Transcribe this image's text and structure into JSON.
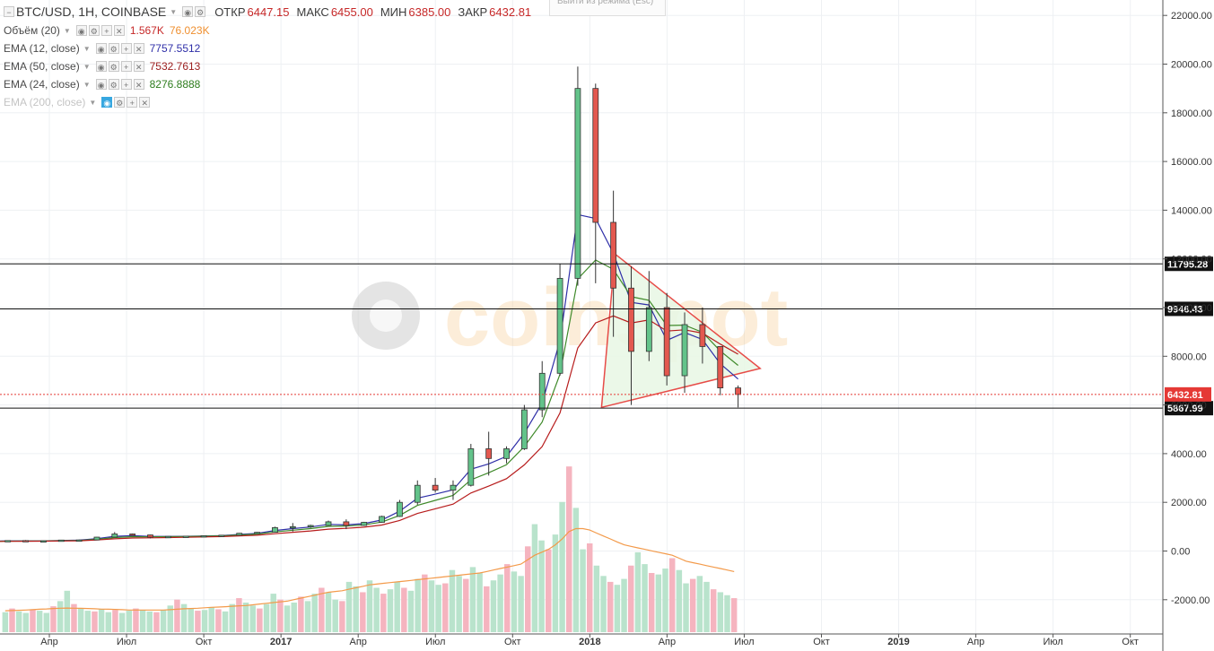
{
  "header": {
    "symbol": "BTC/USD, 1Н, COINBASE",
    "ohlc": [
      {
        "label": "ОТКР",
        "value": "6447.15"
      },
      {
        "label": "МАКС",
        "value": "6455.00"
      },
      {
        "label": "МИН",
        "value": "6385.00"
      },
      {
        "label": "ЗАКР",
        "value": "6432.81"
      }
    ]
  },
  "indicators": [
    {
      "name": "Объём (20)",
      "values": [
        "1.567K",
        "76.023K"
      ],
      "colors": [
        "#c62828",
        "#ef8f2f"
      ]
    },
    {
      "name": "EMA (12, close)",
      "values": [
        "7757.5512"
      ],
      "colors": [
        "#2f2fa8"
      ]
    },
    {
      "name": "EMA (50, close)",
      "values": [
        "7532.7613"
      ],
      "colors": [
        "#9b1c1c"
      ]
    },
    {
      "name": "EMA (24, close)",
      "values": [
        "8276.8888"
      ],
      "colors": [
        "#2e7d1e"
      ]
    },
    {
      "name": "EMA (200, close)",
      "values": [],
      "colors": []
    }
  ],
  "tooltip": {
    "text": "Выйти из режима (Esc)"
  },
  "watermark": {
    "text": "coinspot"
  },
  "colors": {
    "up": "#5ab47a",
    "up_fill": "#63c38a",
    "down": "#e3584f",
    "ema12": "#2f2fa8",
    "ema24": "#3f8a2a",
    "ema50": "#b71c1c",
    "vol_up": "#b9e3cc",
    "vol_down": "#f5b4bf",
    "vol_ma": "#f39a4a",
    "triangle": "#e53935",
    "triangle_fill": "#e9f8e6"
  },
  "chart_data": {
    "type": "candlestick",
    "y_axis_ticks": [
      "22000.00",
      "20000.00",
      "18000.00",
      "16000.00",
      "14000.00",
      "12000.00",
      "10000.00",
      "8000.00",
      "6000.00",
      "4000.00",
      "2000.00",
      "0.00",
      "-2000.00"
    ],
    "x_axis_ticks": [
      "Апр",
      "Июл",
      "Окт",
      "2017",
      "Апр",
      "Июл",
      "Окт",
      "2018",
      "Апр",
      "Июл",
      "Окт",
      "2019",
      "Апр",
      "Июл",
      "Окт"
    ],
    "ylim": [
      -3800,
      22600
    ],
    "horizontal_levels": [
      {
        "value": 11795.28,
        "label": "11795.28"
      },
      {
        "value": 9946.43,
        "label": "9946.43"
      },
      {
        "value": 5867.99,
        "label": "5867.99"
      }
    ],
    "last_price": {
      "value": 6432.81,
      "label": "6432.81"
    },
    "triangle": [
      [
        "2018-01-28",
        12200
      ],
      [
        "2018-01-12",
        5900
      ],
      [
        "2018-07-18",
        7500
      ]
    ],
    "candles": [
      [
        "2016-01-01",
        430,
        440,
        370,
        380
      ],
      [
        "2016-01-22",
        380,
        430,
        370,
        420
      ],
      [
        "2016-02-12",
        420,
        440,
        410,
        430
      ],
      [
        "2016-03-04",
        430,
        450,
        410,
        415
      ],
      [
        "2016-03-25",
        415,
        430,
        400,
        420
      ],
      [
        "2016-04-15",
        420,
        460,
        420,
        450
      ],
      [
        "2016-05-06",
        450,
        470,
        440,
        455
      ],
      [
        "2016-05-27",
        455,
        580,
        450,
        570
      ],
      [
        "2016-06-17",
        570,
        780,
        560,
        700
      ],
      [
        "2016-07-08",
        700,
        720,
        650,
        660
      ],
      [
        "2016-07-29",
        660,
        670,
        520,
        570
      ],
      [
        "2016-08-19",
        570,
        610,
        560,
        600
      ],
      [
        "2016-09-09",
        600,
        620,
        590,
        610
      ],
      [
        "2016-09-30",
        610,
        640,
        600,
        630
      ],
      [
        "2016-10-21",
        630,
        660,
        620,
        650
      ],
      [
        "2016-11-11",
        650,
        740,
        640,
        730
      ],
      [
        "2016-12-02",
        730,
        780,
        720,
        770
      ],
      [
        "2016-12-23",
        770,
        1000,
        760,
        960
      ],
      [
        "2017-01-13",
        960,
        1150,
        800,
        1000
      ],
      [
        "2017-02-03",
        1000,
        1080,
        950,
        1050
      ],
      [
        "2017-02-24",
        1050,
        1250,
        1040,
        1200
      ],
      [
        "2017-03-17",
        1200,
        1300,
        900,
        1050
      ],
      [
        "2017-04-07",
        1050,
        1200,
        1030,
        1180
      ],
      [
        "2017-04-28",
        1180,
        1450,
        1170,
        1420
      ],
      [
        "2017-05-19",
        1420,
        2100,
        1400,
        2000
      ],
      [
        "2017-06-09",
        2000,
        2900,
        1900,
        2700
      ],
      [
        "2017-06-30",
        2700,
        3000,
        2400,
        2500
      ],
      [
        "2017-07-21",
        2500,
        2900,
        2100,
        2700
      ],
      [
        "2017-08-11",
        2700,
        4400,
        2650,
        4200
      ],
      [
        "2017-09-01",
        4200,
        4900,
        3100,
        3800
      ],
      [
        "2017-09-22",
        3800,
        4300,
        3600,
        4200
      ],
      [
        "2017-10-13",
        4200,
        6000,
        4150,
        5800
      ],
      [
        "2017-11-03",
        5800,
        7800,
        5500,
        7300
      ],
      [
        "2017-11-24",
        7300,
        11800,
        7200,
        11200
      ],
      [
        "2017-12-15",
        11200,
        19900,
        10900,
        19000
      ],
      [
        "2018-01-05",
        19000,
        19200,
        11000,
        13500
      ],
      [
        "2018-01-26",
        13500,
        14800,
        8800,
        10800
      ],
      [
        "2018-02-16",
        10800,
        11700,
        6000,
        8200
      ],
      [
        "2018-03-09",
        8200,
        11500,
        7800,
        10000
      ],
      [
        "2018-03-30",
        10000,
        10600,
        6800,
        7200
      ],
      [
        "2018-04-20",
        7200,
        9800,
        6500,
        9300
      ],
      [
        "2018-05-11",
        9300,
        10000,
        7700,
        8400
      ],
      [
        "2018-06-01",
        8400,
        8300,
        6400,
        6700
      ],
      [
        "2018-06-22",
        6700,
        6800,
        5900,
        6432.81
      ]
    ],
    "volume_bars": [
      1.35,
      1.6,
      1.4,
      1.3,
      1.55,
      1.45,
      1.3,
      1.75,
      2.1,
      2.8,
      1.9,
      1.6,
      1.45,
      1.4,
      1.55,
      1.35,
      1.5,
      1.3,
      1.45,
      1.6,
      1.5,
      1.4,
      1.35,
      1.5,
      1.8,
      2.2,
      1.9,
      1.6,
      1.45,
      1.5,
      1.7,
      1.55,
      1.4,
      1.9,
      2.3,
      2.0,
      1.8,
      1.6,
      1.9,
      2.6,
      2.2,
      1.8,
      2.0,
      2.4,
      2.1,
      2.6,
      3.0,
      2.7,
      2.2,
      2.1,
      3.4,
      3.1,
      2.7,
      3.5,
      3.0,
      2.6,
      2.9,
      3.4,
      3.0,
      2.8,
      3.6,
      3.9,
      3.5,
      3.2,
      3.3,
      4.2,
      3.8,
      3.6,
      4.4,
      4.0,
      3.1,
      3.5,
      3.9,
      4.6,
      4.1,
      3.8,
      5.8,
      7.3,
      6.2,
      5.6,
      6.6,
      8.8,
      11.2,
      8.4,
      5.6,
      6.0,
      4.5,
      3.8,
      3.4,
      3.2,
      3.6,
      4.5,
      5.4,
      4.6,
      4.0,
      3.9,
      4.3,
      5.0,
      4.2,
      3.3,
      3.6,
      3.8,
      3.4,
      2.9,
      2.7,
      2.5,
      2.3
    ],
    "volume_ma": [
      1.45,
      1.46,
      1.48,
      1.5,
      1.52,
      1.55,
      1.57,
      1.6,
      1.62,
      1.63,
      1.62,
      1.61,
      1.6,
      1.58,
      1.56,
      1.55,
      1.54,
      1.52,
      1.5,
      1.5,
      1.5,
      1.5,
      1.5,
      1.5,
      1.52,
      1.55,
      1.58,
      1.6,
      1.62,
      1.65,
      1.68,
      1.7,
      1.72,
      1.75,
      1.78,
      1.8,
      1.85,
      1.9,
      1.95,
      2.0,
      2.05,
      2.1,
      2.2,
      2.3,
      2.4,
      2.5,
      2.6,
      2.7,
      2.75,
      2.8,
      2.9,
      3.0,
      3.1,
      3.2,
      3.25,
      3.3,
      3.35,
      3.4,
      3.45,
      3.5,
      3.55,
      3.6,
      3.65,
      3.7,
      3.75,
      3.8,
      3.85,
      3.9,
      3.95,
      4.0,
      4.1,
      4.2,
      4.3,
      4.4,
      4.5,
      4.6,
      4.9,
      5.2,
      5.4,
      5.6,
      5.9,
      6.3,
      6.8,
      7.0,
      7.0,
      6.9,
      6.7,
      6.5,
      6.3,
      6.1,
      5.9,
      5.8,
      5.7,
      5.6,
      5.5,
      5.4,
      5.3,
      5.2,
      5.0,
      4.8,
      4.7,
      4.6,
      4.5,
      4.4,
      4.3,
      4.2,
      4.1
    ]
  }
}
